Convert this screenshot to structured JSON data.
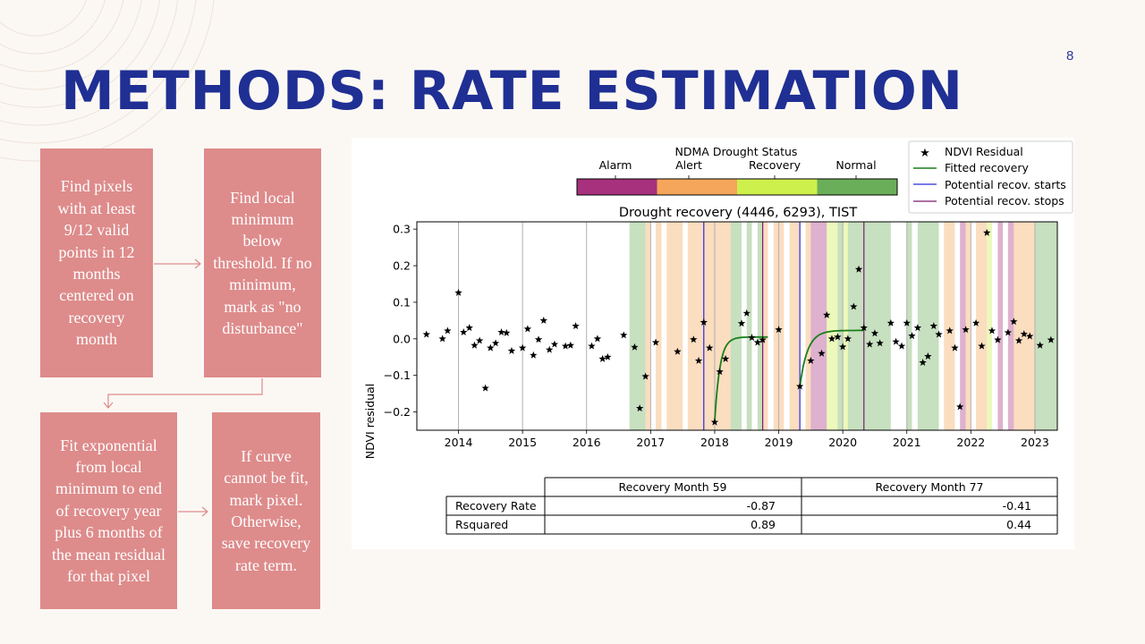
{
  "slide": {
    "page_number": "8",
    "title": "METHODS: RATE ESTIMATION"
  },
  "flow": {
    "step1": "Find pixels with at least 9/12 valid points in 12 months centered on recovery month",
    "step2": "Find local minimum below threshold. If no minimum, mark as \"no disturbance\"",
    "step3": "Fit exponential from local minimum to end of recovery year plus 6 months of the mean residual for that pixel",
    "step4": "If curve cannot be fit, mark pixel. Otherwise, save recovery rate term."
  },
  "chart_data": {
    "type": "scatter",
    "title": "Drought recovery (4446, 6293), TIST",
    "ylabel": "NDVI residual",
    "xlim": [
      2013.35,
      2023.35
    ],
    "ylim": [
      -0.25,
      0.32
    ],
    "xticks": [
      2014,
      2015,
      2016,
      2017,
      2018,
      2019,
      2020,
      2021,
      2022,
      2023
    ],
    "yticks": [
      -0.2,
      -0.1,
      0.0,
      0.1,
      0.2,
      0.3
    ],
    "ytick_labels": [
      "−0.2",
      "−0.1",
      "0.0",
      "0.1",
      "0.2",
      "0.3"
    ],
    "vertical_gridlines_at": [
      2014,
      2015,
      2016,
      2017,
      2018,
      2019,
      2020,
      2021,
      2022,
      2023
    ],
    "ndma_colorbar": {
      "title": "NDMA Drought Status",
      "labels": [
        "Alarm",
        "Alert",
        "Recovery",
        "Normal"
      ],
      "colors": [
        "#a8317d",
        "#f5a65a",
        "#cef04c",
        "#6bae59"
      ]
    },
    "status_bands": [
      {
        "start": 2016.67,
        "end": 2016.92,
        "status": "Normal"
      },
      {
        "start": 2016.92,
        "end": 2017.0,
        "status": "Alert"
      },
      {
        "start": 2017.08,
        "end": 2017.17,
        "status": "Alert"
      },
      {
        "start": 2017.25,
        "end": 2017.5,
        "status": "Alert"
      },
      {
        "start": 2017.58,
        "end": 2018.0,
        "status": "Alert"
      },
      {
        "start": 2018.0,
        "end": 2018.25,
        "status": "Alert"
      },
      {
        "start": 2018.25,
        "end": 2018.42,
        "status": "Normal"
      },
      {
        "start": 2018.5,
        "end": 2018.58,
        "status": "Normal"
      },
      {
        "start": 2018.67,
        "end": 2018.75,
        "status": "Normal"
      },
      {
        "start": 2018.75,
        "end": 2018.83,
        "status": "Alert"
      },
      {
        "start": 2018.92,
        "end": 2019.0,
        "status": "Alert"
      },
      {
        "start": 2019.0,
        "end": 2019.08,
        "status": "Alert"
      },
      {
        "start": 2019.17,
        "end": 2019.33,
        "status": "Alert"
      },
      {
        "start": 2019.42,
        "end": 2019.5,
        "status": "Alert"
      },
      {
        "start": 2019.5,
        "end": 2019.75,
        "status": "Alarm"
      },
      {
        "start": 2019.75,
        "end": 2019.92,
        "status": "Recovery"
      },
      {
        "start": 2019.92,
        "end": 2020.0,
        "status": "Normal"
      },
      {
        "start": 2020.0,
        "end": 2020.08,
        "status": "Recovery"
      },
      {
        "start": 2020.08,
        "end": 2020.33,
        "status": "Normal"
      },
      {
        "start": 2020.33,
        "end": 2020.75,
        "status": "Normal"
      },
      {
        "start": 2021.0,
        "end": 2021.08,
        "status": "Normal"
      },
      {
        "start": 2021.17,
        "end": 2021.5,
        "status": "Normal"
      },
      {
        "start": 2021.58,
        "end": 2021.75,
        "status": "Alert"
      },
      {
        "start": 2021.83,
        "end": 2021.92,
        "status": "Alarm"
      },
      {
        "start": 2021.92,
        "end": 2022.0,
        "status": "Alert"
      },
      {
        "start": 2022.08,
        "end": 2022.25,
        "status": "Alert"
      },
      {
        "start": 2022.25,
        "end": 2022.33,
        "status": "Recovery"
      },
      {
        "start": 2022.42,
        "end": 2022.5,
        "status": "Alarm"
      },
      {
        "start": 2022.58,
        "end": 2022.67,
        "status": "Alarm"
      },
      {
        "start": 2022.67,
        "end": 2023.0,
        "status": "Alert"
      },
      {
        "start": 2023.0,
        "end": 2023.35,
        "status": "Normal"
      }
    ],
    "recovery_starts": [
      2017.83,
      2019.33
    ],
    "recovery_stops": [
      2018.75,
      2020.33
    ],
    "series": [
      {
        "name": "NDVI Residual",
        "marker": "star",
        "points": [
          [
            2013.5,
            0.012
          ],
          [
            2013.75,
            0.0
          ],
          [
            2013.83,
            0.022
          ],
          [
            2014.0,
            0.126
          ],
          [
            2014.08,
            0.018
          ],
          [
            2014.17,
            0.03
          ],
          [
            2014.25,
            -0.018
          ],
          [
            2014.33,
            -0.005
          ],
          [
            2014.42,
            -0.135
          ],
          [
            2014.5,
            -0.025
          ],
          [
            2014.58,
            -0.012
          ],
          [
            2014.67,
            0.018
          ],
          [
            2014.75,
            0.016
          ],
          [
            2014.83,
            -0.033
          ],
          [
            2015.0,
            -0.025
          ],
          [
            2015.08,
            0.027
          ],
          [
            2015.17,
            -0.045
          ],
          [
            2015.25,
            -0.002
          ],
          [
            2015.33,
            0.05
          ],
          [
            2015.42,
            -0.03
          ],
          [
            2015.5,
            -0.015
          ],
          [
            2015.67,
            -0.02
          ],
          [
            2015.75,
            -0.018
          ],
          [
            2015.83,
            0.035
          ],
          [
            2016.08,
            -0.02
          ],
          [
            2016.17,
            0.0
          ],
          [
            2016.25,
            -0.055
          ],
          [
            2016.33,
            -0.05
          ],
          [
            2016.58,
            0.01
          ],
          [
            2016.75,
            -0.023
          ],
          [
            2016.83,
            -0.19
          ],
          [
            2016.92,
            -0.103
          ],
          [
            2017.08,
            -0.01
          ],
          [
            2017.42,
            -0.035
          ],
          [
            2017.67,
            -0.002
          ],
          [
            2017.75,
            -0.06
          ],
          [
            2017.83,
            0.045
          ],
          [
            2017.92,
            -0.025
          ],
          [
            2018.0,
            -0.228
          ],
          [
            2018.08,
            -0.09
          ],
          [
            2018.17,
            -0.055
          ],
          [
            2018.42,
            0.042
          ],
          [
            2018.5,
            0.07
          ],
          [
            2018.58,
            0.003
          ],
          [
            2018.67,
            -0.01
          ],
          [
            2018.75,
            -0.003
          ],
          [
            2019.0,
            0.025
          ],
          [
            2019.33,
            -0.13
          ],
          [
            2019.5,
            -0.06
          ],
          [
            2019.67,
            -0.04
          ],
          [
            2019.75,
            0.065
          ],
          [
            2019.83,
            0.0
          ],
          [
            2019.92,
            0.005
          ],
          [
            2020.0,
            -0.022
          ],
          [
            2020.08,
            0.0
          ],
          [
            2020.17,
            0.088
          ],
          [
            2020.25,
            0.19
          ],
          [
            2020.33,
            0.03
          ],
          [
            2020.42,
            -0.015
          ],
          [
            2020.5,
            0.015
          ],
          [
            2020.58,
            -0.012
          ],
          [
            2020.75,
            0.043
          ],
          [
            2020.83,
            -0.008
          ],
          [
            2020.92,
            -0.02
          ],
          [
            2021.0,
            0.043
          ],
          [
            2021.08,
            0.008
          ],
          [
            2021.17,
            0.03
          ],
          [
            2021.25,
            -0.065
          ],
          [
            2021.33,
            -0.048
          ],
          [
            2021.42,
            0.035
          ],
          [
            2021.5,
            0.012
          ],
          [
            2021.67,
            0.022
          ],
          [
            2021.75,
            -0.025
          ],
          [
            2021.83,
            -0.186
          ],
          [
            2021.92,
            0.025
          ],
          [
            2022.08,
            0.043
          ],
          [
            2022.17,
            -0.02
          ],
          [
            2022.25,
            0.29
          ],
          [
            2022.33,
            0.022
          ],
          [
            2022.42,
            -0.003
          ],
          [
            2022.58,
            0.017
          ],
          [
            2022.67,
            0.047
          ],
          [
            2022.75,
            -0.005
          ],
          [
            2022.83,
            0.013
          ],
          [
            2022.92,
            0.007
          ],
          [
            2023.08,
            -0.018
          ],
          [
            2023.25,
            -0.003
          ]
        ]
      },
      {
        "name": "Fitted recovery",
        "color": "#1a7f1a",
        "segments": [
          {
            "x0": 2018.0,
            "x1": 2018.83,
            "y_min": -0.228,
            "y_asym": 0.005,
            "tau": 0.08
          },
          {
            "x0": 2019.33,
            "x1": 2020.33,
            "y_min": -0.13,
            "y_asym": 0.023,
            "tau": 0.12
          }
        ]
      }
    ],
    "legend": {
      "position": "top-right",
      "entries": [
        {
          "label": "NDVI Residual",
          "style": "star",
          "color": "#000000"
        },
        {
          "label": "Fitted recovery",
          "style": "line",
          "color": "#1a7f1a"
        },
        {
          "label": "Potential recov. starts",
          "style": "line",
          "color": "#2a2ad6"
        },
        {
          "label": "Potential recov. stops",
          "style": "line",
          "color": "#7a1a6e"
        }
      ]
    },
    "table": {
      "columns": [
        "",
        "Recovery Month 59",
        "Recovery Month 77"
      ],
      "rows": [
        [
          "Recovery Rate",
          "-0.87",
          "-0.41"
        ],
        [
          "Rsquared",
          "0.89",
          "0.44"
        ]
      ]
    }
  }
}
